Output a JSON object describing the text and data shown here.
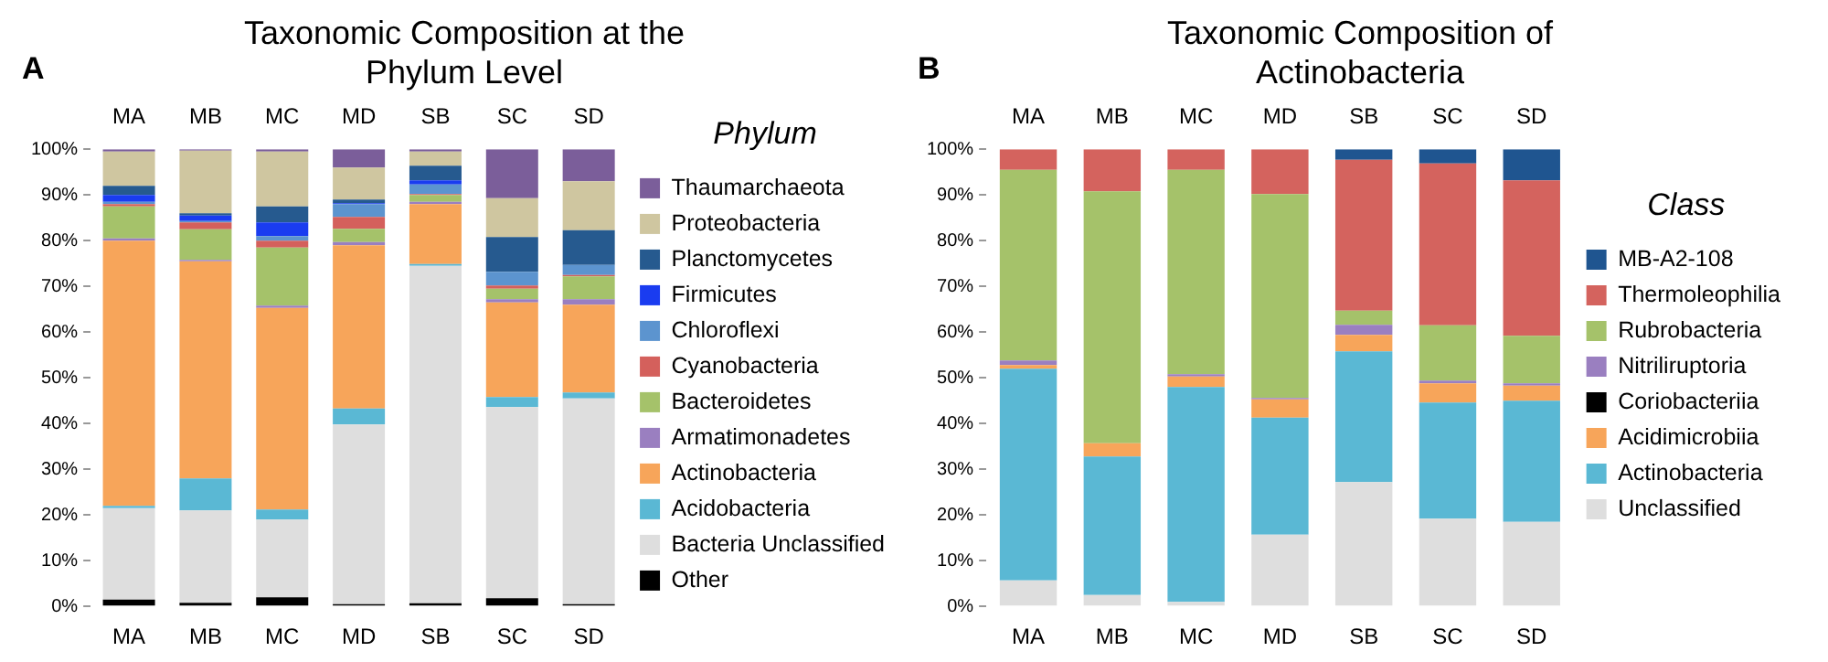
{
  "chart_data": [
    {
      "type": "bar",
      "title": "Taxonomic Composition at the Phylum Level",
      "annotations": [
        "A"
      ],
      "legend_title": "Phylum",
      "stacked": true,
      "legend": "right",
      "categories": [
        "MA",
        "MB",
        "MC",
        "MD",
        "SB",
        "SC",
        "SD"
      ],
      "ylim": [
        0,
        100
      ],
      "yticks": [
        {
          "value": 0,
          "label": "0%"
        },
        {
          "value": 10,
          "label": "10%"
        },
        {
          "value": 20,
          "label": "20%"
        },
        {
          "value": 30,
          "label": "30%"
        },
        {
          "value": 40,
          "label": "40%"
        },
        {
          "value": 50,
          "label": "50%"
        },
        {
          "value": 60,
          "label": "60%"
        },
        {
          "value": 70,
          "label": "70%"
        },
        {
          "value": 80,
          "label": "80%"
        },
        {
          "value": 90,
          "label": "90%"
        },
        {
          "value": 100,
          "label": "100%"
        }
      ],
      "series": [
        {
          "name": "Other",
          "color": "#000000",
          "values": [
            1.5,
            0.8,
            2,
            0.5,
            0.7,
            1.8,
            0.5
          ]
        },
        {
          "name": "Bacteria Unclassified",
          "color": "#dedede",
          "values": [
            20,
            20.2,
            17,
            39.3,
            73.8,
            41.8,
            45
          ]
        },
        {
          "name": "Acidobacteria",
          "color": "#5ab8d4",
          "values": [
            0.5,
            7,
            2.2,
            3.5,
            0.4,
            2.2,
            1.3
          ]
        },
        {
          "name": "Actinobacteria",
          "color": "#f7a55a",
          "values": [
            58,
            47.5,
            44.1,
            35.7,
            13.1,
            20.7,
            19.2
          ]
        },
        {
          "name": "Armatimonadetes",
          "color": "#9a7fc0",
          "values": [
            0.5,
            0.3,
            0.5,
            0.7,
            0.5,
            0.7,
            1.2
          ]
        },
        {
          "name": "Bacteroidetes",
          "color": "#a5c26a",
          "values": [
            7,
            6.7,
            12.7,
            2.9,
            1.5,
            2.3,
            5
          ]
        },
        {
          "name": "Cyanobacteria",
          "color": "#d4605c",
          "values": [
            0.5,
            1.5,
            1.5,
            2.6,
            0.2,
            0.7,
            0.3
          ]
        },
        {
          "name": "Chloroflexi",
          "color": "#5c94cf",
          "values": [
            0.5,
            0.3,
            1,
            2.8,
            2.1,
            3,
            2.2
          ]
        },
        {
          "name": "Firmicutes",
          "color": "#1a3cf0",
          "values": [
            1.5,
            1.2,
            3,
            0.2,
            0.9,
            0,
            0
          ]
        },
        {
          "name": "Planctomycetes",
          "color": "#265a8f",
          "values": [
            2,
            0.5,
            3.5,
            0.8,
            3.2,
            7.6,
            7.6
          ]
        },
        {
          "name": "Proteobacteria",
          "color": "#cfc6a0",
          "values": [
            7.5,
            13.7,
            12,
            7,
            3.1,
            8.5,
            10.7
          ]
        },
        {
          "name": "Thaumarchaeota",
          "color": "#7b5e9a",
          "values": [
            0.5,
            0.3,
            0.5,
            4,
            0.5,
            10.7,
            7
          ]
        }
      ]
    },
    {
      "type": "bar",
      "title": "Taxonomic Composition of Actinobacteria",
      "annotations": [
        "B"
      ],
      "legend_title": "Class",
      "stacked": true,
      "legend": "right",
      "categories": [
        "MA",
        "MB",
        "MC",
        "MD",
        "SB",
        "SC",
        "SD"
      ],
      "ylim": [
        0,
        100
      ],
      "yticks": [
        {
          "value": 0,
          "label": "0%"
        },
        {
          "value": 10,
          "label": "10%"
        },
        {
          "value": 20,
          "label": "20%"
        },
        {
          "value": 30,
          "label": "30%"
        },
        {
          "value": 40,
          "label": "40%"
        },
        {
          "value": 50,
          "label": "50%"
        },
        {
          "value": 60,
          "label": "60%"
        },
        {
          "value": 70,
          "label": "70%"
        },
        {
          "value": 80,
          "label": "80%"
        },
        {
          "value": 90,
          "label": "90%"
        },
        {
          "value": 100,
          "label": "100%"
        }
      ],
      "series": [
        {
          "name": "Unclassified",
          "color": "#dedede",
          "values": [
            5.7,
            2.5,
            1,
            15.7,
            27.2,
            19.2,
            18.5
          ]
        },
        {
          "name": "Actinobacteria",
          "color": "#5ab8d4",
          "values": [
            46.3,
            30.3,
            47,
            25.6,
            28.6,
            25.4,
            26.5
          ]
        },
        {
          "name": "Acidimicrobiia",
          "color": "#f7a55a",
          "values": [
            0.8,
            2.9,
            2.3,
            4,
            3.6,
            4.2,
            3.3
          ]
        },
        {
          "name": "Coriobacteriia",
          "color": "#000000",
          "values": [
            0,
            0,
            0,
            0,
            0,
            0,
            0
          ]
        },
        {
          "name": "Nitriliruptoria",
          "color": "#9a7fc0",
          "values": [
            1,
            0,
            0.5,
            0.3,
            2.2,
            0.6,
            0.5
          ]
        },
        {
          "name": "Rubrobacteria",
          "color": "#a5c26a",
          "values": [
            41.7,
            55.1,
            44.7,
            44.6,
            3.1,
            12.1,
            10.4
          ]
        },
        {
          "name": "Thermoleophilia",
          "color": "#d4635e",
          "values": [
            4.5,
            9.2,
            4.5,
            9.8,
            33,
            35.4,
            34
          ]
        },
        {
          "name": "MB-A2-108",
          "color": "#1f5590",
          "values": [
            0,
            0,
            0,
            0,
            2.3,
            3.1,
            6.8
          ]
        }
      ]
    }
  ]
}
